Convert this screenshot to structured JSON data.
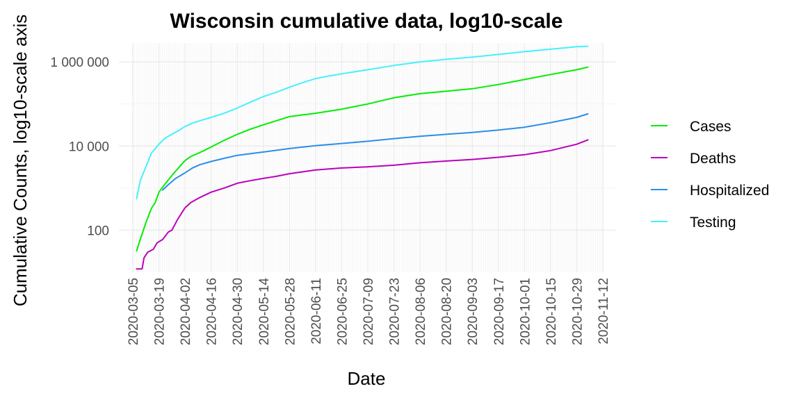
{
  "chart_data": {
    "type": "line",
    "title": "Wisconsin cumulative data, log10-scale",
    "xlabel": "Date",
    "ylabel": "Cumulative Counts, log10-scale axis",
    "y_scale": "log10",
    "ylim": [
      10,
      2800000
    ],
    "xlim": [
      "2020-03-05",
      "2020-11-12"
    ],
    "grid": true,
    "legend_position": "right",
    "x_ticks": [
      "2020-03-05",
      "2020-03-19",
      "2020-04-02",
      "2020-04-16",
      "2020-04-30",
      "2020-05-14",
      "2020-05-28",
      "2020-06-11",
      "2020-06-25",
      "2020-07-09",
      "2020-07-23",
      "2020-08-06",
      "2020-08-20",
      "2020-09-03",
      "2020-09-17",
      "2020-10-01",
      "2020-10-15",
      "2020-10-29",
      "2020-11-12"
    ],
    "y_ticks": [
      {
        "value": 100,
        "label": "100"
      },
      {
        "value": 10000,
        "label": "10 000"
      },
      {
        "value": 1000000,
        "label": "1 000 000"
      }
    ],
    "series": [
      {
        "name": "Cases",
        "color": "#00ee00",
        "points": [
          [
            "2020-03-07",
            32
          ],
          [
            "2020-03-09",
            60
          ],
          [
            "2020-03-12",
            150
          ],
          [
            "2020-03-15",
            330
          ],
          [
            "2020-03-17",
            450
          ],
          [
            "2020-03-19",
            800
          ],
          [
            "2020-03-22",
            1200
          ],
          [
            "2020-03-26",
            2000
          ],
          [
            "2020-03-30",
            3200
          ],
          [
            "2020-04-02",
            4500
          ],
          [
            "2020-04-05",
            5600
          ],
          [
            "2020-04-10",
            7000
          ],
          [
            "2020-04-16",
            9500
          ],
          [
            "2020-04-22",
            13000
          ],
          [
            "2020-04-30",
            19000
          ],
          [
            "2020-05-07",
            25000
          ],
          [
            "2020-05-14",
            32000
          ],
          [
            "2020-05-21",
            40000
          ],
          [
            "2020-05-28",
            50000
          ],
          [
            "2020-06-11",
            60000
          ],
          [
            "2020-06-25",
            75000
          ],
          [
            "2020-07-09",
            100000
          ],
          [
            "2020-07-23",
            140000
          ],
          [
            "2020-08-06",
            175000
          ],
          [
            "2020-08-20",
            200000
          ],
          [
            "2020-09-03",
            230000
          ],
          [
            "2020-09-17",
            290000
          ],
          [
            "2020-10-01",
            380000
          ],
          [
            "2020-10-15",
            500000
          ],
          [
            "2020-10-29",
            650000
          ],
          [
            "2020-11-04",
            750000
          ]
        ]
      },
      {
        "name": "Deaths",
        "color": "#bb00bb",
        "points": [
          [
            "2020-03-07",
            12
          ],
          [
            "2020-03-10",
            12
          ],
          [
            "2020-03-11",
            22
          ],
          [
            "2020-03-13",
            30
          ],
          [
            "2020-03-16",
            35
          ],
          [
            "2020-03-18",
            50
          ],
          [
            "2020-03-21",
            60
          ],
          [
            "2020-03-24",
            90
          ],
          [
            "2020-03-26",
            100
          ],
          [
            "2020-03-29",
            180
          ],
          [
            "2020-04-02",
            340
          ],
          [
            "2020-04-05",
            450
          ],
          [
            "2020-04-10",
            600
          ],
          [
            "2020-04-16",
            800
          ],
          [
            "2020-04-23",
            1000
          ],
          [
            "2020-04-30",
            1300
          ],
          [
            "2020-05-07",
            1500
          ],
          [
            "2020-05-14",
            1700
          ],
          [
            "2020-05-21",
            1900
          ],
          [
            "2020-05-28",
            2200
          ],
          [
            "2020-06-11",
            2700
          ],
          [
            "2020-06-25",
            3000
          ],
          [
            "2020-07-09",
            3200
          ],
          [
            "2020-07-23",
            3500
          ],
          [
            "2020-08-06",
            4000
          ],
          [
            "2020-08-20",
            4400
          ],
          [
            "2020-09-03",
            4800
          ],
          [
            "2020-09-17",
            5400
          ],
          [
            "2020-10-01",
            6200
          ],
          [
            "2020-10-15",
            7800
          ],
          [
            "2020-10-29",
            11000
          ],
          [
            "2020-11-04",
            14000
          ]
        ]
      },
      {
        "name": "Hospitalized",
        "color": "#2a8ee8",
        "points": [
          [
            "2020-03-21",
            900
          ],
          [
            "2020-03-24",
            1200
          ],
          [
            "2020-03-28",
            1700
          ],
          [
            "2020-04-02",
            2300
          ],
          [
            "2020-04-06",
            3000
          ],
          [
            "2020-04-10",
            3600
          ],
          [
            "2020-04-16",
            4300
          ],
          [
            "2020-04-23",
            5100
          ],
          [
            "2020-04-30",
            6000
          ],
          [
            "2020-05-14",
            7200
          ],
          [
            "2020-05-28",
            8700
          ],
          [
            "2020-06-11",
            10200
          ],
          [
            "2020-06-25",
            11500
          ],
          [
            "2020-07-09",
            13000
          ],
          [
            "2020-07-23",
            15000
          ],
          [
            "2020-08-06",
            17000
          ],
          [
            "2020-08-20",
            19000
          ],
          [
            "2020-09-03",
            21000
          ],
          [
            "2020-09-17",
            24000
          ],
          [
            "2020-10-01",
            28000
          ],
          [
            "2020-10-15",
            36000
          ],
          [
            "2020-10-29",
            48000
          ],
          [
            "2020-11-04",
            58000
          ]
        ]
      },
      {
        "name": "Testing",
        "color": "#44f0ff",
        "points": [
          [
            "2020-03-07",
            560
          ],
          [
            "2020-03-09",
            1500
          ],
          [
            "2020-03-12",
            3200
          ],
          [
            "2020-03-15",
            6800
          ],
          [
            "2020-03-19",
            11000
          ],
          [
            "2020-03-22",
            15000
          ],
          [
            "2020-03-24",
            17000
          ],
          [
            "2020-03-26",
            19000
          ],
          [
            "2020-03-30",
            24000
          ],
          [
            "2020-04-02",
            29000
          ],
          [
            "2020-04-06",
            35000
          ],
          [
            "2020-04-10",
            40000
          ],
          [
            "2020-04-16",
            48000
          ],
          [
            "2020-04-23",
            60000
          ],
          [
            "2020-04-30",
            80000
          ],
          [
            "2020-05-07",
            110000
          ],
          [
            "2020-05-14",
            150000
          ],
          [
            "2020-05-21",
            190000
          ],
          [
            "2020-05-28",
            250000
          ],
          [
            "2020-06-04",
            320000
          ],
          [
            "2020-06-11",
            400000
          ],
          [
            "2020-06-18",
            460000
          ],
          [
            "2020-06-25",
            520000
          ],
          [
            "2020-07-09",
            650000
          ],
          [
            "2020-07-23",
            820000
          ],
          [
            "2020-08-06",
            1000000
          ],
          [
            "2020-08-20",
            1150000
          ],
          [
            "2020-09-03",
            1300000
          ],
          [
            "2020-09-17",
            1500000
          ],
          [
            "2020-10-01",
            1750000
          ],
          [
            "2020-10-15",
            2000000
          ],
          [
            "2020-10-29",
            2300000
          ],
          [
            "2020-11-04",
            2350000
          ]
        ]
      }
    ]
  }
}
